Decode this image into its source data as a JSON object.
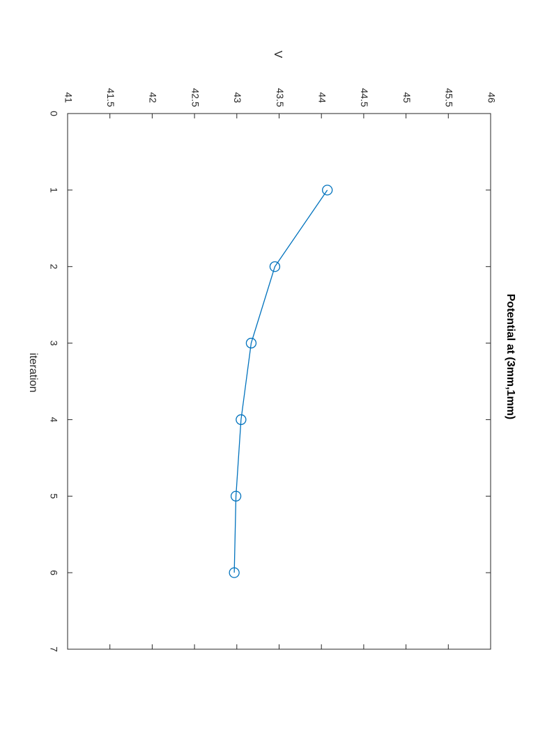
{
  "chart_data": {
    "type": "line",
    "title": "Potential at (3mm,1mm)",
    "x_label": "iteration",
    "y_label": "V",
    "x": [
      1,
      2,
      3,
      4,
      5,
      6
    ],
    "series": [
      {
        "name": "Potential",
        "color": "#0072bd",
        "values": [
          44.07,
          43.45,
          43.17,
          43.05,
          42.99,
          42.97
        ]
      }
    ],
    "xlim": [
      0,
      7
    ],
    "xticks": [
      0,
      1,
      2,
      3,
      4,
      5,
      6,
      7
    ],
    "ylim": [
      41,
      46
    ],
    "yticks": [
      41,
      41.5,
      42,
      42.5,
      43,
      43.5,
      44,
      44.5,
      45,
      45.5,
      46
    ],
    "marker": "circle"
  }
}
